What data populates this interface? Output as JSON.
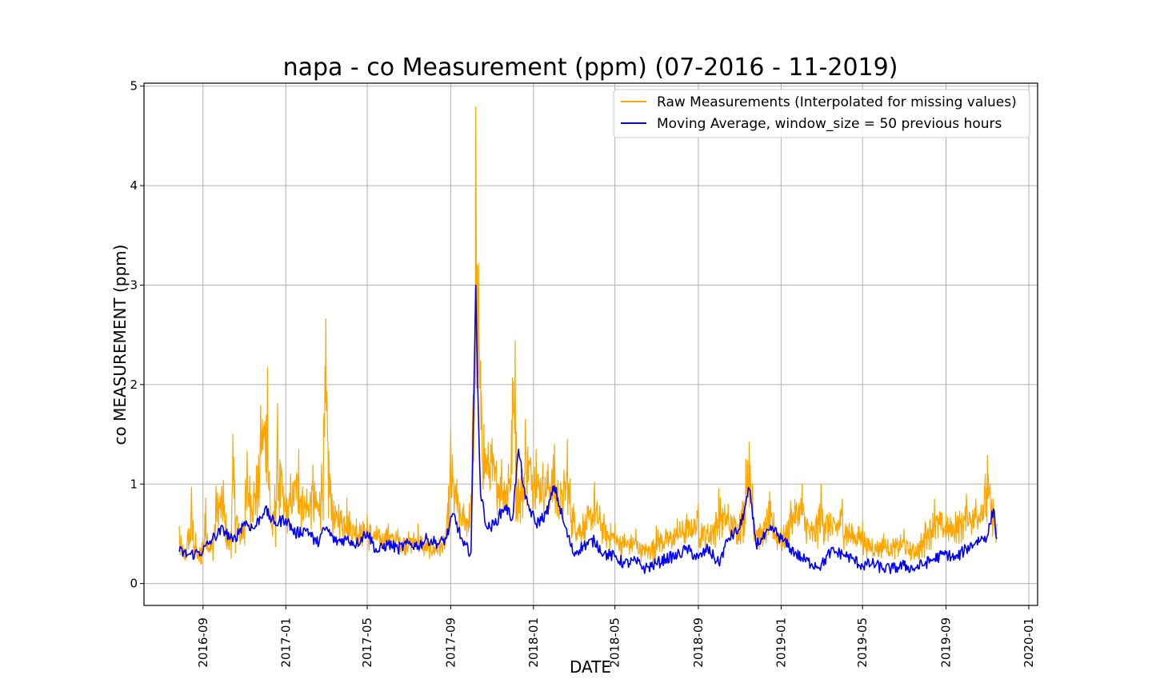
{
  "chart_data": {
    "type": "line",
    "title": "napa - co Measurement (ppm) (07-2016 - 11-2019)",
    "xlabel": "DATE",
    "ylabel": "co MEASUREMENT (ppm)",
    "x_range": [
      "2016-06-06",
      "2020-01-14"
    ],
    "ylim": [
      -0.22,
      5.03
    ],
    "grid": true,
    "legend_position": "top-right",
    "x_ticks": [
      "2016-09",
      "2017-01",
      "2017-05",
      "2017-09",
      "2018-01",
      "2018-05",
      "2018-09",
      "2019-01",
      "2019-05",
      "2019-09",
      "2020-01"
    ],
    "y_ticks": [
      "0",
      "1",
      "2",
      "3",
      "4",
      "5"
    ],
    "y_tick_values": [
      0,
      1,
      2,
      3,
      4,
      5
    ],
    "series": [
      {
        "name": "Raw Measurements (Interpolated for missing values)",
        "color": "#ffa500",
        "x": [
          "2016-07-28",
          "2016-08-05",
          "2016-08-15",
          "2016-08-25",
          "2016-09-05",
          "2016-09-12",
          "2016-09-20",
          "2016-10-01",
          "2016-10-10",
          "2016-10-15",
          "2016-10-25",
          "2016-11-05",
          "2016-11-15",
          "2016-11-25",
          "2016-12-05",
          "2016-12-12",
          "2016-12-20",
          "2017-01-01",
          "2017-01-08",
          "2017-01-20",
          "2017-02-01",
          "2017-02-10",
          "2017-02-20",
          "2017-03-01",
          "2017-03-10",
          "2017-03-20",
          "2017-04-01",
          "2017-04-15",
          "2017-05-01",
          "2017-05-15",
          "2017-06-01",
          "2017-06-15",
          "2017-07-01",
          "2017-07-15",
          "2017-07-28",
          "2017-08-15",
          "2017-08-25",
          "2017-09-01",
          "2017-09-10",
          "2017-09-20",
          "2017-10-01",
          "2017-10-08",
          "2017-10-10",
          "2017-10-12",
          "2017-10-15",
          "2017-10-20",
          "2017-11-01",
          "2017-11-15",
          "2017-11-25",
          "2017-12-01",
          "2017-12-05",
          "2017-12-10",
          "2017-12-20",
          "2018-01-05",
          "2018-01-15",
          "2018-02-01",
          "2018-02-10",
          "2018-02-20",
          "2018-03-01",
          "2018-03-15",
          "2018-04-01",
          "2018-04-15",
          "2018-05-01",
          "2018-05-15",
          "2018-06-01",
          "2018-06-15",
          "2018-07-01",
          "2018-07-15",
          "2018-08-01",
          "2018-08-15",
          "2018-09-01",
          "2018-09-15",
          "2018-10-01",
          "2018-10-15",
          "2018-11-01",
          "2018-11-10",
          "2018-11-15",
          "2018-11-20",
          "2018-12-01",
          "2018-12-15",
          "2019-01-01",
          "2019-01-15",
          "2019-02-01",
          "2019-02-15",
          "2019-03-01",
          "2019-03-15",
          "2019-04-01",
          "2019-04-15",
          "2019-05-01",
          "2019-05-15",
          "2019-06-01",
          "2019-06-15",
          "2019-07-01",
          "2019-07-15",
          "2019-08-01",
          "2019-08-15",
          "2019-09-01",
          "2019-09-15",
          "2019-10-01",
          "2019-10-15",
          "2019-11-01",
          "2019-11-05",
          "2019-11-10",
          "2019-11-15"
        ],
        "values": [
          0.58,
          0.35,
          0.97,
          0.3,
          0.86,
          0.4,
          0.98,
          1.04,
          0.45,
          1.5,
          0.55,
          1.33,
          1.02,
          1.79,
          2.17,
          0.6,
          1.81,
          0.9,
          1.1,
          1.35,
          0.95,
          1.19,
          0.92,
          2.66,
          0.9,
          0.8,
          0.86,
          0.65,
          0.7,
          0.58,
          0.6,
          0.55,
          0.52,
          0.6,
          0.45,
          0.45,
          0.55,
          1.54,
          1.05,
          0.8,
          0.9,
          4.79,
          3.2,
          3.22,
          2.24,
          1.6,
          1.46,
          1.25,
          1.2,
          2.07,
          2.44,
          1.05,
          1.65,
          1.35,
          1.21,
          1.4,
          1.02,
          1.45,
          0.8,
          0.7,
          1.02,
          0.7,
          0.6,
          0.5,
          0.55,
          0.4,
          0.58,
          0.55,
          0.65,
          0.7,
          0.8,
          0.6,
          0.95,
          0.8,
          0.7,
          1.25,
          1.42,
          1.0,
          0.6,
          0.92,
          0.55,
          0.83,
          1.0,
          0.62,
          1.0,
          0.7,
          0.85,
          0.6,
          0.62,
          0.45,
          0.5,
          0.45,
          0.55,
          0.4,
          0.62,
          0.85,
          0.7,
          0.72,
          0.9,
          0.85,
          1.29,
          1.0,
          0.85,
          0.6
        ]
      },
      {
        "name": "Moving Average, window_size = 50 previous hours",
        "color": "#0000ff",
        "x": [
          "2016-07-28",
          "2016-08-10",
          "2016-08-20",
          "2016-09-01",
          "2016-09-15",
          "2016-10-01",
          "2016-10-15",
          "2016-11-01",
          "2016-11-15",
          "2016-12-01",
          "2016-12-15",
          "2017-01-01",
          "2017-01-15",
          "2017-02-01",
          "2017-02-15",
          "2017-03-01",
          "2017-03-15",
          "2017-04-01",
          "2017-04-15",
          "2017-05-01",
          "2017-05-15",
          "2017-06-01",
          "2017-06-15",
          "2017-07-01",
          "2017-07-15",
          "2017-07-28",
          "2017-08-15",
          "2017-08-25",
          "2017-09-05",
          "2017-09-20",
          "2017-10-01",
          "2017-10-08",
          "2017-10-11",
          "2017-10-15",
          "2017-10-25",
          "2017-11-05",
          "2017-11-20",
          "2017-12-01",
          "2017-12-10",
          "2017-12-20",
          "2018-01-05",
          "2018-01-20",
          "2018-02-01",
          "2018-02-15",
          "2018-03-01",
          "2018-03-15",
          "2018-04-01",
          "2018-04-15",
          "2018-05-01",
          "2018-05-15",
          "2018-06-01",
          "2018-06-15",
          "2018-07-01",
          "2018-07-15",
          "2018-08-01",
          "2018-08-15",
          "2018-09-01",
          "2018-09-15",
          "2018-10-01",
          "2018-10-15",
          "2018-11-01",
          "2018-11-10",
          "2018-11-15",
          "2018-11-25",
          "2018-12-05",
          "2018-12-20",
          "2019-01-01",
          "2019-01-15",
          "2019-02-01",
          "2019-02-15",
          "2019-03-01",
          "2019-03-15",
          "2019-04-01",
          "2019-04-15",
          "2019-05-01",
          "2019-05-15",
          "2019-06-01",
          "2019-06-15",
          "2019-07-01",
          "2019-07-15",
          "2019-08-01",
          "2019-08-15",
          "2019-09-01",
          "2019-09-15",
          "2019-10-01",
          "2019-10-15",
          "2019-11-01",
          "2019-11-10",
          "2019-11-15"
        ],
        "values": [
          0.32,
          0.29,
          0.3,
          0.33,
          0.45,
          0.55,
          0.42,
          0.62,
          0.55,
          0.75,
          0.6,
          0.65,
          0.5,
          0.55,
          0.4,
          0.56,
          0.42,
          0.45,
          0.4,
          0.52,
          0.32,
          0.4,
          0.35,
          0.4,
          0.38,
          0.45,
          0.4,
          0.45,
          0.7,
          0.38,
          0.32,
          3.0,
          1.95,
          0.9,
          0.55,
          0.6,
          0.78,
          0.65,
          1.35,
          0.85,
          0.6,
          0.7,
          0.98,
          0.6,
          0.3,
          0.38,
          0.43,
          0.3,
          0.27,
          0.2,
          0.22,
          0.15,
          0.2,
          0.25,
          0.28,
          0.35,
          0.25,
          0.35,
          0.2,
          0.45,
          0.55,
          0.8,
          0.95,
          0.4,
          0.45,
          0.55,
          0.45,
          0.35,
          0.25,
          0.2,
          0.18,
          0.32,
          0.3,
          0.25,
          0.18,
          0.2,
          0.15,
          0.15,
          0.18,
          0.15,
          0.2,
          0.25,
          0.3,
          0.25,
          0.35,
          0.42,
          0.48,
          0.75,
          0.45
        ]
      }
    ]
  }
}
